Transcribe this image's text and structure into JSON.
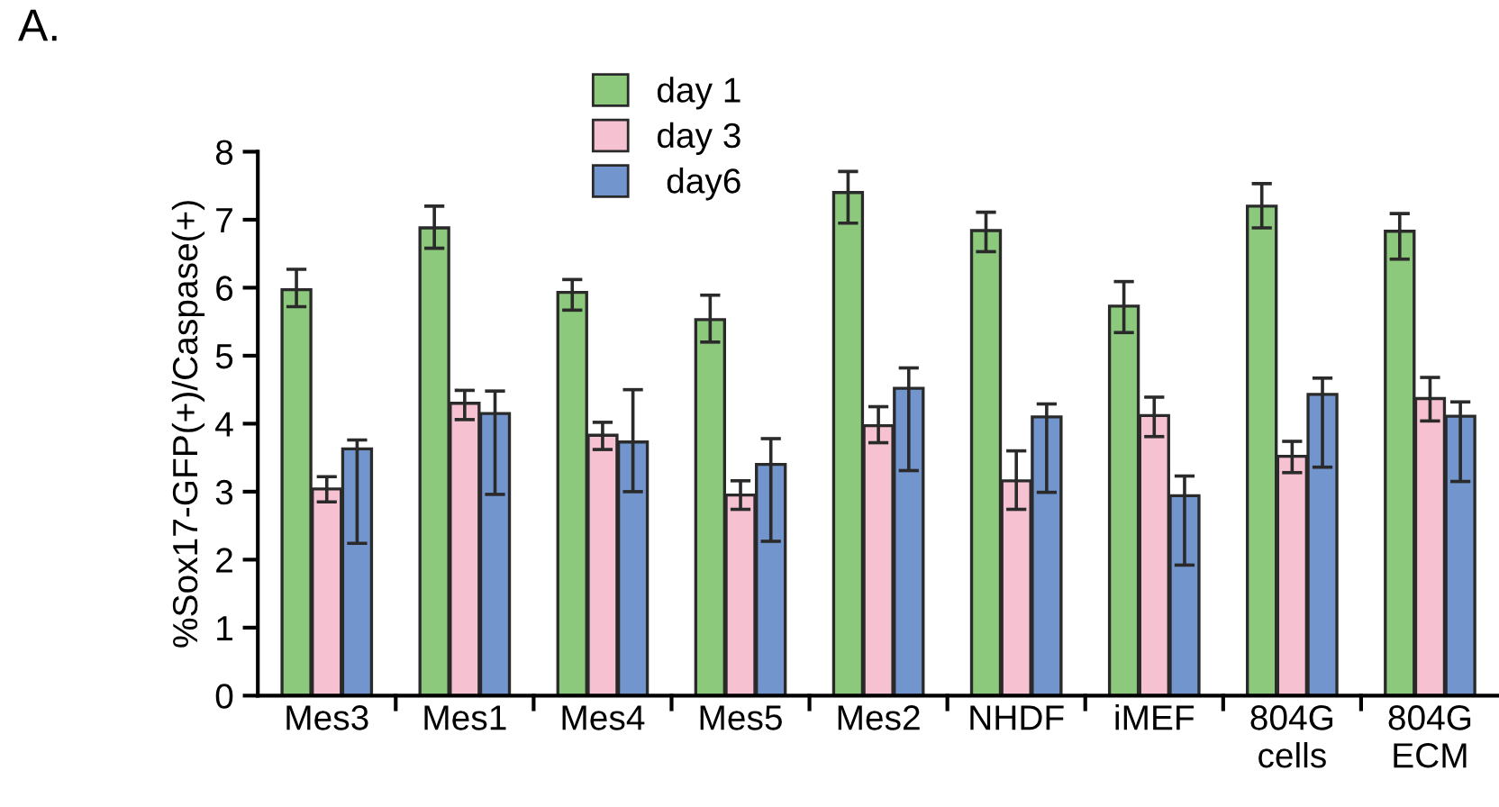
{
  "chart_data": {
    "type": "bar",
    "title": "A.",
    "ylabel": "%Sox17-GFP(+)/Caspase(+)",
    "categories": [
      "Mes3",
      "Mes1",
      "Mes4",
      "Mes5",
      "Mes2",
      "NHDF",
      "iMEF",
      "804G\ncells",
      "804G\nECM"
    ],
    "series": [
      {
        "name": "day 1",
        "color": "#8cc97c",
        "values": [
          5.97,
          6.88,
          5.93,
          5.53,
          7.4,
          6.84,
          5.73,
          7.2,
          6.83
        ],
        "errors": [
          [
            5.72,
            6.27
          ],
          [
            6.58,
            7.2
          ],
          [
            5.67,
            6.12
          ],
          [
            5.2,
            5.89
          ],
          [
            6.95,
            7.71
          ],
          [
            6.53,
            7.11
          ],
          [
            5.34,
            6.09
          ],
          [
            6.88,
            7.53
          ],
          [
            6.42,
            7.09
          ]
        ]
      },
      {
        "name": "day 3",
        "color": "#f6c2d2",
        "values": [
          3.04,
          4.3,
          3.83,
          2.95,
          3.97,
          3.16,
          4.12,
          3.52,
          4.37
        ],
        "errors": [
          [
            2.85,
            3.22
          ],
          [
            4.06,
            4.49
          ],
          [
            3.62,
            4.02
          ],
          [
            2.74,
            3.16
          ],
          [
            3.72,
            4.25
          ],
          [
            2.74,
            3.6
          ],
          [
            3.81,
            4.39
          ],
          [
            3.28,
            3.74
          ],
          [
            4.04,
            4.68
          ]
        ]
      },
      {
        "name": " day6",
        "color": "#7195cc",
        "values": [
          3.63,
          4.15,
          3.73,
          3.4,
          4.52,
          4.1,
          2.94,
          4.43,
          4.11
        ],
        "errors": [
          [
            2.24,
            3.76
          ],
          [
            2.96,
            4.48
          ],
          [
            3.0,
            4.5
          ],
          [
            2.27,
            3.78
          ],
          [
            3.31,
            4.82
          ],
          [
            2.99,
            4.29
          ],
          [
            1.92,
            3.23
          ],
          [
            3.36,
            4.67
          ],
          [
            3.15,
            4.32
          ]
        ]
      }
    ],
    "ylim": [
      0,
      8
    ],
    "yticks": [
      0,
      1,
      2,
      3,
      4,
      5,
      6,
      7,
      8
    ],
    "legend": "top",
    "grid": false
  }
}
